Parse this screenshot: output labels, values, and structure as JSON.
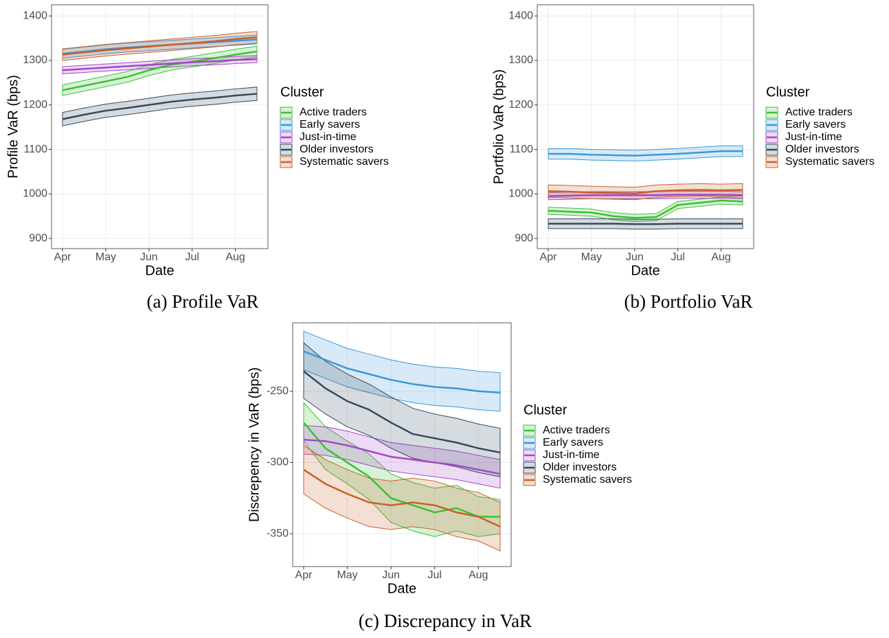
{
  "chart_data": [
    {
      "type": "line",
      "caption": "(a) Profile VaR",
      "x_label": "Date",
      "y_label": "Profile VaR (bps)",
      "legend_title": "Cluster",
      "grid": true,
      "categories": [
        "Apr",
        null,
        "May",
        null,
        "Jun",
        null,
        "Jul",
        null,
        "Aug",
        null
      ],
      "ylim": [
        877,
        1425
      ],
      "yticks": [
        900,
        1000,
        1100,
        1200,
        1300,
        1400
      ],
      "series": [
        {
          "name": "Active traders",
          "color": "#3dbf35",
          "values": [
            1233,
            1243,
            1253,
            1263,
            1278,
            1290,
            1297,
            1305,
            1313,
            1320
          ],
          "lower": [
            1221,
            1231,
            1241,
            1251,
            1266,
            1278,
            1285,
            1293,
            1301,
            1308
          ],
          "upper": [
            1245,
            1255,
            1265,
            1275,
            1290,
            1302,
            1309,
            1317,
            1325,
            1332
          ]
        },
        {
          "name": "Early savers",
          "color": "#3a97d8",
          "values": [
            1315,
            1320,
            1325,
            1329,
            1332,
            1335,
            1338,
            1341,
            1344,
            1347
          ],
          "lower": [
            1305,
            1310,
            1315,
            1319,
            1322,
            1325,
            1328,
            1331,
            1334,
            1337
          ],
          "upper": [
            1325,
            1330,
            1335,
            1339,
            1342,
            1345,
            1348,
            1351,
            1354,
            1357
          ]
        },
        {
          "name": "Just-in-time",
          "color": "#a347c6",
          "values": [
            1278,
            1281,
            1284,
            1287,
            1290,
            1293,
            1296,
            1298,
            1301,
            1303
          ],
          "lower": [
            1270,
            1273,
            1276,
            1279,
            1282,
            1285,
            1288,
            1290,
            1293,
            1295
          ],
          "upper": [
            1286,
            1289,
            1292,
            1295,
            1298,
            1301,
            1304,
            1306,
            1309,
            1311
          ]
        },
        {
          "name": "Older investors",
          "color": "#34495e",
          "values": [
            1168,
            1178,
            1187,
            1193,
            1200,
            1207,
            1212,
            1216,
            1221,
            1225
          ],
          "lower": [
            1153,
            1163,
            1172,
            1178,
            1185,
            1192,
            1197,
            1201,
            1206,
            1210
          ],
          "upper": [
            1183,
            1193,
            1202,
            1208,
            1215,
            1222,
            1227,
            1231,
            1236,
            1240
          ]
        },
        {
          "name": "Systematic savers",
          "color": "#c8602a",
          "values": [
            1313,
            1318,
            1323,
            1327,
            1331,
            1335,
            1339,
            1343,
            1348,
            1352
          ],
          "lower": [
            1300,
            1305,
            1310,
            1314,
            1318,
            1322,
            1326,
            1330,
            1335,
            1339
          ],
          "upper": [
            1326,
            1331,
            1336,
            1340,
            1344,
            1348,
            1352,
            1356,
            1361,
            1365
          ]
        }
      ]
    },
    {
      "type": "line",
      "caption": "(b) Portfolio VaR",
      "x_label": "Date",
      "y_label": "Portfolio VaR (bps)",
      "legend_title": "Cluster",
      "grid": true,
      "categories": [
        "Apr",
        null,
        "May",
        null,
        "Jun",
        null,
        "Jul",
        null,
        "Aug",
        null
      ],
      "ylim": [
        877,
        1425
      ],
      "yticks": [
        900,
        1000,
        1100,
        1200,
        1300,
        1400
      ],
      "series": [
        {
          "name": "Active traders",
          "color": "#3dbf35",
          "values": [
            962,
            960,
            958,
            950,
            946,
            948,
            975,
            980,
            985,
            983
          ],
          "lower": [
            954,
            952,
            950,
            942,
            938,
            940,
            967,
            972,
            977,
            975
          ],
          "upper": [
            970,
            968,
            966,
            958,
            954,
            956,
            983,
            988,
            993,
            991
          ]
        },
        {
          "name": "Early savers",
          "color": "#3a97d8",
          "values": [
            1090,
            1090,
            1088,
            1087,
            1086,
            1088,
            1090,
            1093,
            1096,
            1096
          ],
          "lower": [
            1078,
            1078,
            1076,
            1075,
            1074,
            1076,
            1078,
            1081,
            1084,
            1084
          ],
          "upper": [
            1102,
            1102,
            1100,
            1099,
            1098,
            1100,
            1102,
            1105,
            1108,
            1108
          ]
        },
        {
          "name": "Just-in-time",
          "color": "#a347c6",
          "values": [
            995,
            996,
            997,
            997,
            997,
            997,
            998,
            998,
            998,
            997
          ],
          "lower": [
            987,
            988,
            989,
            989,
            989,
            989,
            990,
            990,
            990,
            989
          ],
          "upper": [
            1003,
            1004,
            1005,
            1005,
            1005,
            1005,
            1006,
            1006,
            1006,
            1005
          ]
        },
        {
          "name": "Older investors",
          "color": "#34495e",
          "values": [
            933,
            933,
            933,
            933,
            932,
            932,
            933,
            933,
            933,
            933
          ],
          "lower": [
            922,
            922,
            922,
            922,
            921,
            921,
            922,
            922,
            922,
            922
          ],
          "upper": [
            944,
            944,
            944,
            944,
            943,
            943,
            944,
            944,
            944,
            944
          ]
        },
        {
          "name": "Systematic savers",
          "color": "#c8602a",
          "values": [
            1006,
            1005,
            1003,
            1002,
            1001,
            1006,
            1008,
            1009,
            1008,
            1009
          ],
          "lower": [
            992,
            991,
            989,
            988,
            987,
            992,
            994,
            995,
            994,
            995
          ],
          "upper": [
            1020,
            1019,
            1017,
            1016,
            1015,
            1020,
            1022,
            1023,
            1022,
            1023
          ]
        }
      ]
    },
    {
      "type": "line",
      "caption": "(c) Discrepancy in VaR",
      "x_label": "Date",
      "y_label": "Discrepency in VaR (bps)",
      "legend_title": "Cluster",
      "grid": true,
      "categories": [
        "Apr",
        null,
        "May",
        null,
        "Jun",
        null,
        "Jul",
        null,
        "Aug",
        null
      ],
      "ylim": [
        -373,
        -202
      ],
      "yticks": [
        -350,
        -300,
        -250
      ],
      "series": [
        {
          "name": "Active traders",
          "color": "#3dbf35",
          "values": [
            -272,
            -290,
            -300,
            -310,
            -325,
            -330,
            -335,
            -332,
            -338,
            -338
          ],
          "lower": [
            -285,
            -305,
            -315,
            -326,
            -342,
            -348,
            -352,
            -348,
            -352,
            -350
          ],
          "upper": [
            -258,
            -275,
            -285,
            -294,
            -308,
            -314,
            -318,
            -316,
            -324,
            -326
          ]
        },
        {
          "name": "Early savers",
          "color": "#3a97d8",
          "values": [
            -222,
            -228,
            -234,
            -238,
            -242,
            -245,
            -247,
            -248,
            -250,
            -251
          ],
          "lower": [
            -235,
            -241,
            -247,
            -251,
            -255,
            -258,
            -260,
            -261,
            -263,
            -264
          ],
          "upper": [
            -208,
            -214,
            -220,
            -224,
            -228,
            -231,
            -233,
            -234,
            -236,
            -237
          ]
        },
        {
          "name": "Just-in-time",
          "color": "#a347c6",
          "values": [
            -284,
            -285,
            -288,
            -292,
            -296,
            -298,
            -300,
            -302,
            -305,
            -308
          ],
          "lower": [
            -294,
            -295,
            -298,
            -302,
            -306,
            -308,
            -310,
            -312,
            -315,
            -318
          ],
          "upper": [
            -274,
            -275,
            -278,
            -282,
            -286,
            -288,
            -290,
            -292,
            -295,
            -298
          ]
        },
        {
          "name": "Older investors",
          "color": "#34495e",
          "values": [
            -236,
            -248,
            -257,
            -263,
            -272,
            -280,
            -283,
            -286,
            -290,
            -293
          ],
          "lower": [
            -255,
            -266,
            -275,
            -281,
            -290,
            -297,
            -300,
            -303,
            -307,
            -310
          ],
          "upper": [
            -216,
            -229,
            -238,
            -245,
            -254,
            -262,
            -266,
            -269,
            -273,
            -276
          ]
        },
        {
          "name": "Systematic savers",
          "color": "#c8602a",
          "values": [
            -305,
            -315,
            -322,
            -328,
            -330,
            -328,
            -330,
            -335,
            -338,
            -345
          ],
          "lower": [
            -322,
            -332,
            -339,
            -345,
            -347,
            -345,
            -347,
            -352,
            -355,
            -362
          ],
          "upper": [
            -288,
            -298,
            -305,
            -311,
            -313,
            -311,
            -313,
            -318,
            -321,
            -328
          ]
        }
      ]
    }
  ]
}
